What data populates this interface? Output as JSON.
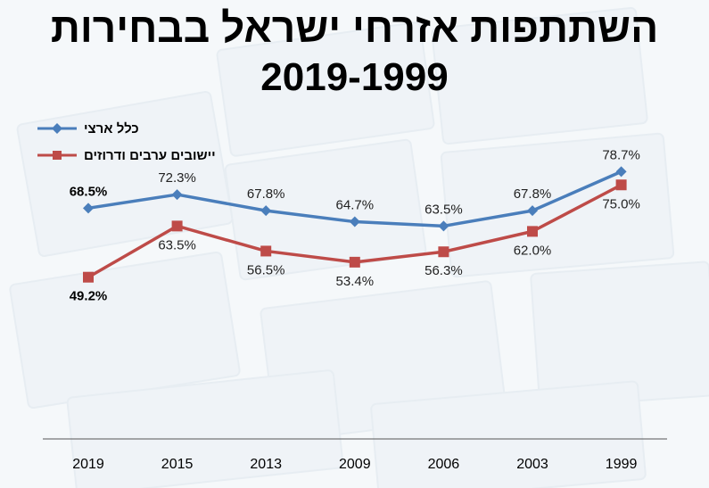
{
  "title": {
    "line1": "השתתפות אזרחי ישראל בבחירות",
    "line2": "2019-1999"
  },
  "legend": [
    {
      "label": "כלל ארצי",
      "color": "#4a7ebb"
    },
    {
      "label": "יישובים ערבים ודרוזים",
      "color": "#be4b48"
    }
  ],
  "chart_data": {
    "type": "line",
    "title": "השתתפות אזרחי ישראל בבחירות 2019-1999",
    "categories": [
      "2019",
      "2015",
      "2013",
      "2009",
      "2006",
      "2003",
      "1999"
    ],
    "series": [
      {
        "name": "כלל ארצי",
        "color": "#4a7ebb",
        "marker": "diamond",
        "values": [
          68.5,
          72.3,
          67.8,
          64.7,
          63.5,
          67.8,
          78.7
        ],
        "labels": [
          "68.5%",
          "72.3%",
          "67.8%",
          "64.7%",
          "63.5%",
          "67.8%",
          "78.7%"
        ]
      },
      {
        "name": "יישובים ערבים ודרוזים",
        "color": "#be4b48",
        "marker": "square",
        "values": [
          49.2,
          63.5,
          56.5,
          53.4,
          56.3,
          62.0,
          75.0
        ],
        "labels": [
          "49.2%",
          "63.5%",
          "56.5%",
          "53.4%",
          "56.3%",
          "62.0%",
          "75.0%"
        ]
      }
    ],
    "xlabel": "",
    "ylabel": "",
    "ylim": [
      0,
      85
    ],
    "grid": false,
    "legend_position": "top-left"
  }
}
